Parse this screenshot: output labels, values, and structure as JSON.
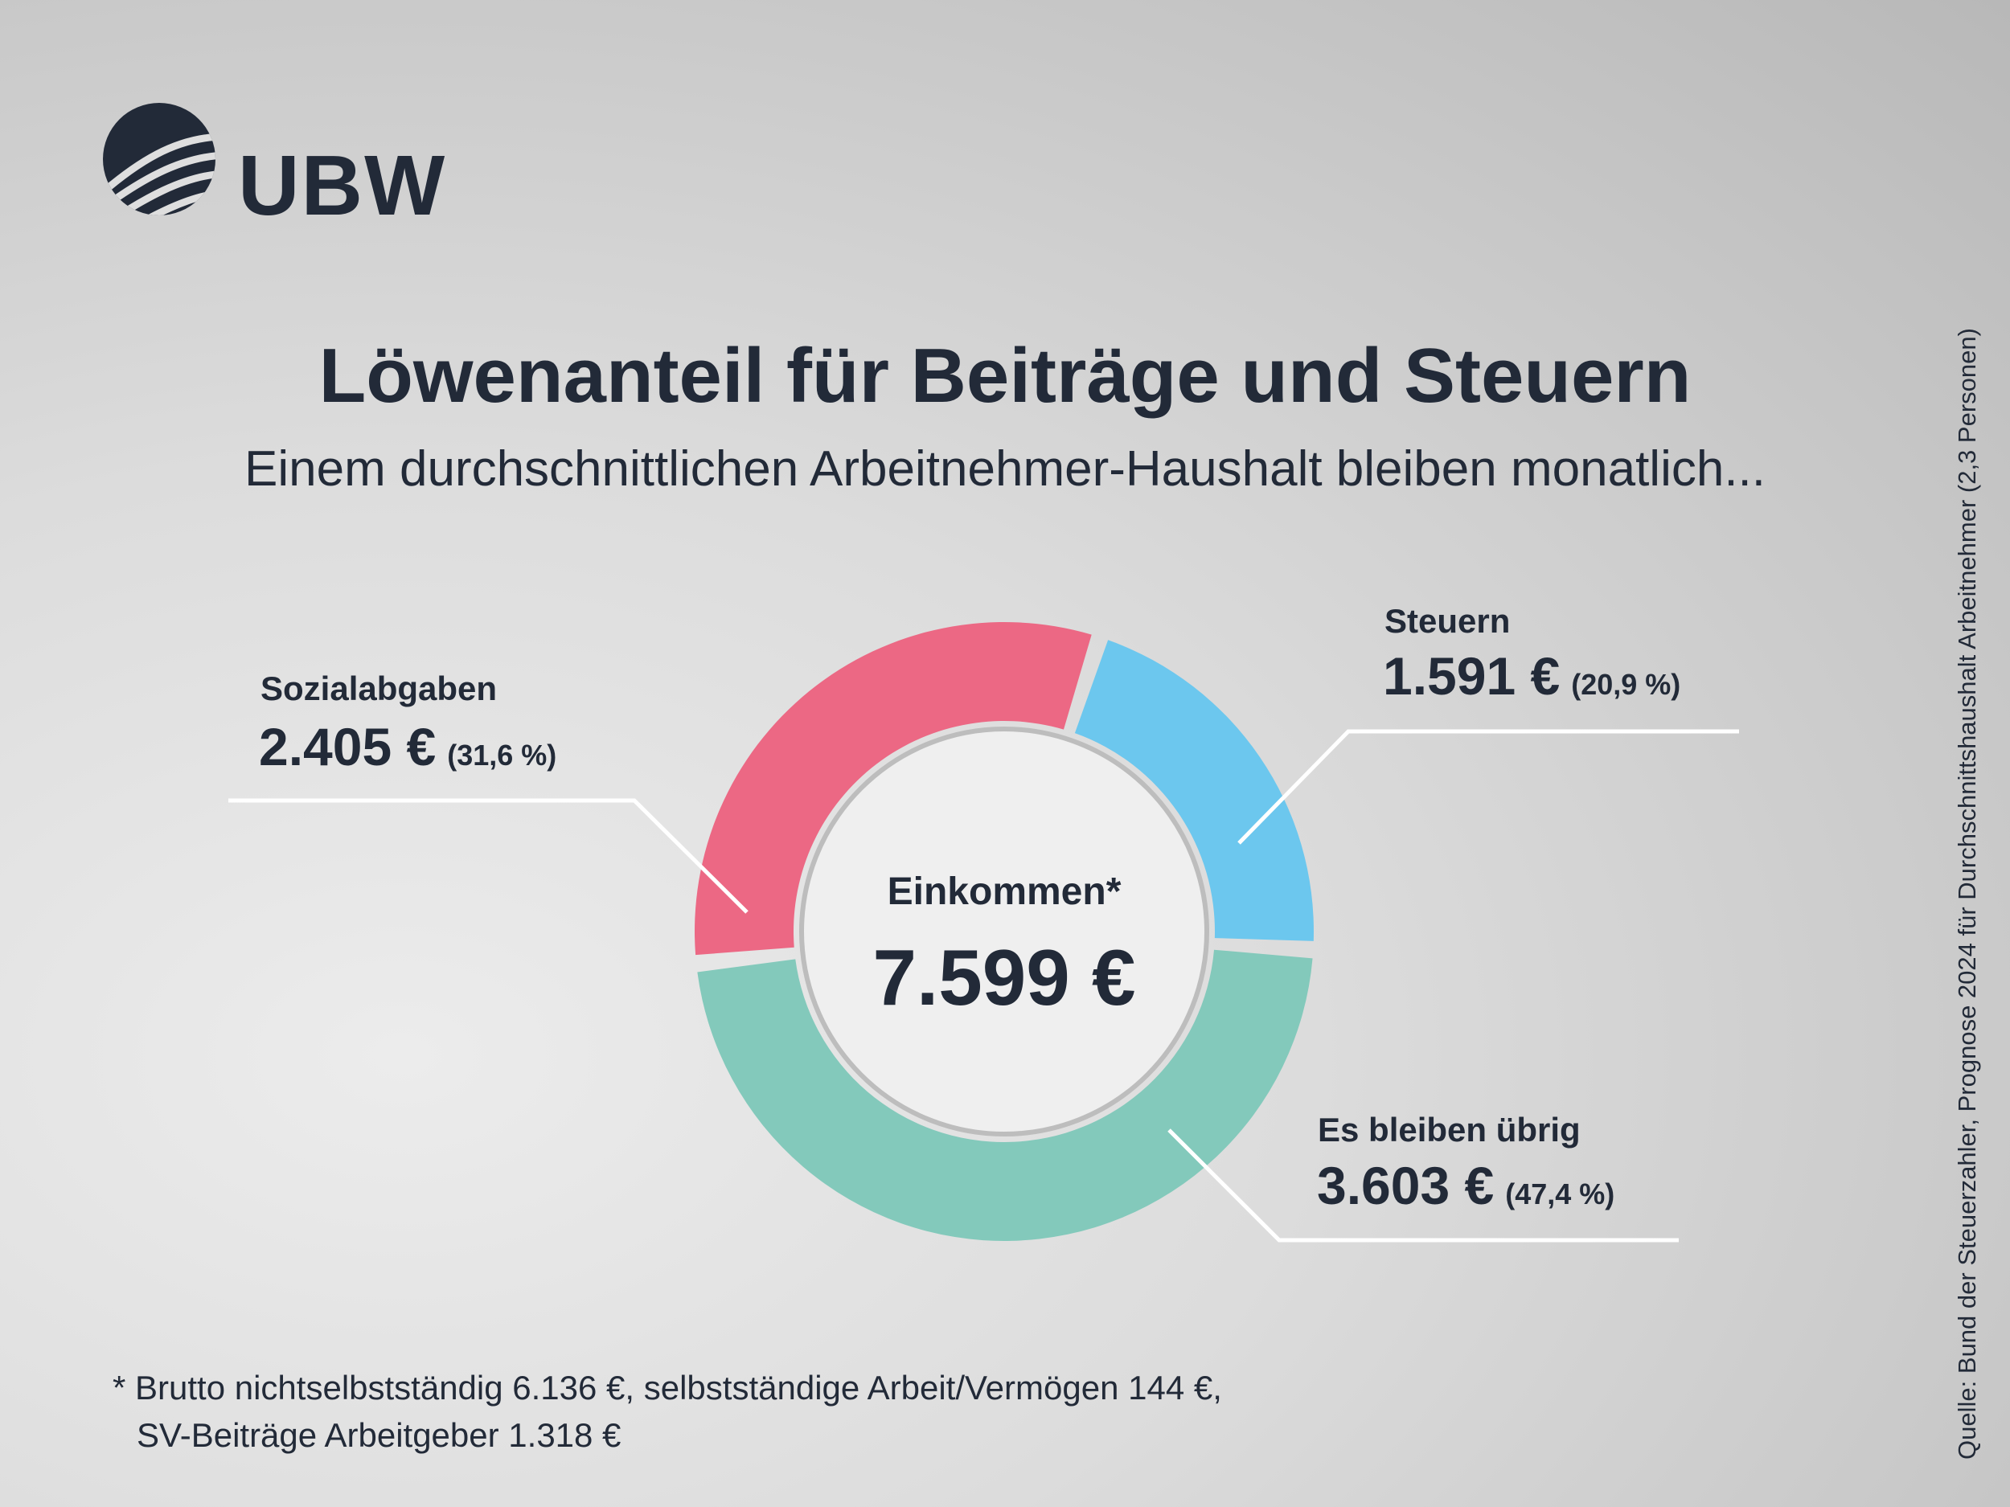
{
  "brand": {
    "name": "UBW"
  },
  "header": {
    "title": "Löwenanteil für Beiträge und Steuern",
    "subtitle": "Einem durchschnittlichen Arbeitnehmer-Haushalt bleiben monatlich..."
  },
  "chart_data": {
    "type": "pie",
    "variant": "donut",
    "title": "Löwenanteil für Beiträge und Steuern",
    "center_label": "Einkommen*",
    "center_value": "7.599 €",
    "total": 7599,
    "slices": [
      {
        "name": "Steuern",
        "value": 1591,
        "value_label": "1.591 €",
        "percent": 20.9,
        "percent_label": "(20,9 %)",
        "color": "#6cc7ee"
      },
      {
        "name": "Es bleiben übrig",
        "value": 3603,
        "value_label": "3.603 €",
        "percent": 47.4,
        "percent_label": "(47,4 %)",
        "color": "#83c9bb"
      },
      {
        "name": "Sozialabgaben",
        "value": 2405,
        "value_label": "2.405 €",
        "percent": 31.6,
        "percent_label": "(31,6 %)",
        "color": "#ec6884"
      }
    ]
  },
  "footnote": {
    "line1": "* Brutto nichtselbstständig 6.136 €, selbstständige Arbeit/Vermögen 144 €,",
    "line2": "SV-Beiträge Arbeitgeber 1.318 €"
  },
  "source": "Quelle: Bund der Steuerzahler, Prognose 2024 für Durchschnittshaushalt Arbeitnehmer (2,3 Personen)",
  "colors": {
    "text": "#222a38",
    "leader": "#ffffff"
  }
}
